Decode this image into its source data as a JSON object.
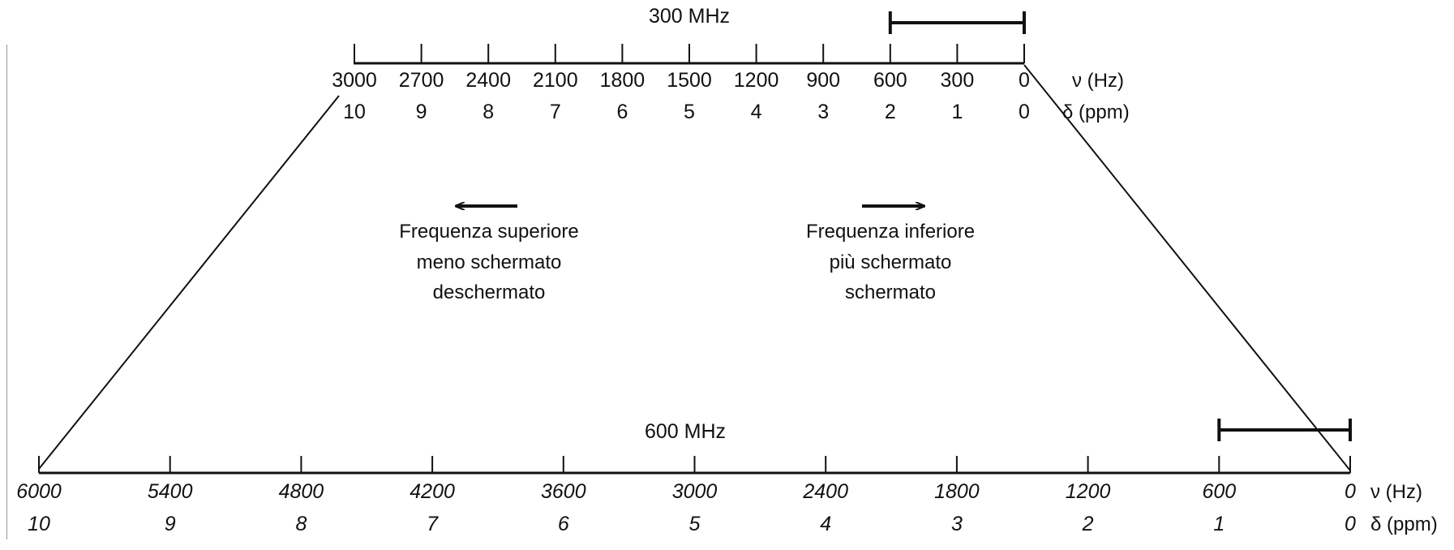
{
  "top_scale": {
    "field_label": "300 MHz",
    "hz_ticks": [
      "3000",
      "2700",
      "2400",
      "2100",
      "1800",
      "1500",
      "1200",
      "900",
      "600",
      "300",
      "0"
    ],
    "ppm_ticks": [
      "10",
      "9",
      "8",
      "7",
      "6",
      "5",
      "4",
      "3",
      "2",
      "1",
      "0"
    ],
    "hz_unit": "ν (Hz)",
    "ppm_unit": "δ (ppm)",
    "bar_range_hz": [
      600,
      0
    ]
  },
  "bottom_scale": {
    "field_label": "600 MHz",
    "hz_ticks": [
      "6000",
      "5400",
      "4800",
      "4200",
      "3600",
      "3000",
      "2400",
      "1800",
      "1200",
      "600",
      "0"
    ],
    "ppm_ticks": [
      "10",
      "9",
      "8",
      "7",
      "6",
      "5",
      "4",
      "3",
      "2",
      "1",
      "0"
    ],
    "hz_unit": "ν (Hz)",
    "ppm_unit": "δ (ppm)",
    "bar_range_hz": [
      600,
      0
    ]
  },
  "left_caption": {
    "line1": "Frequenza superiore",
    "line2": "meno schermato",
    "line3": "deschermato"
  },
  "right_caption": {
    "line1": "Frequenza inferiore",
    "line2": "più schermato",
    "line3": "schermato"
  }
}
